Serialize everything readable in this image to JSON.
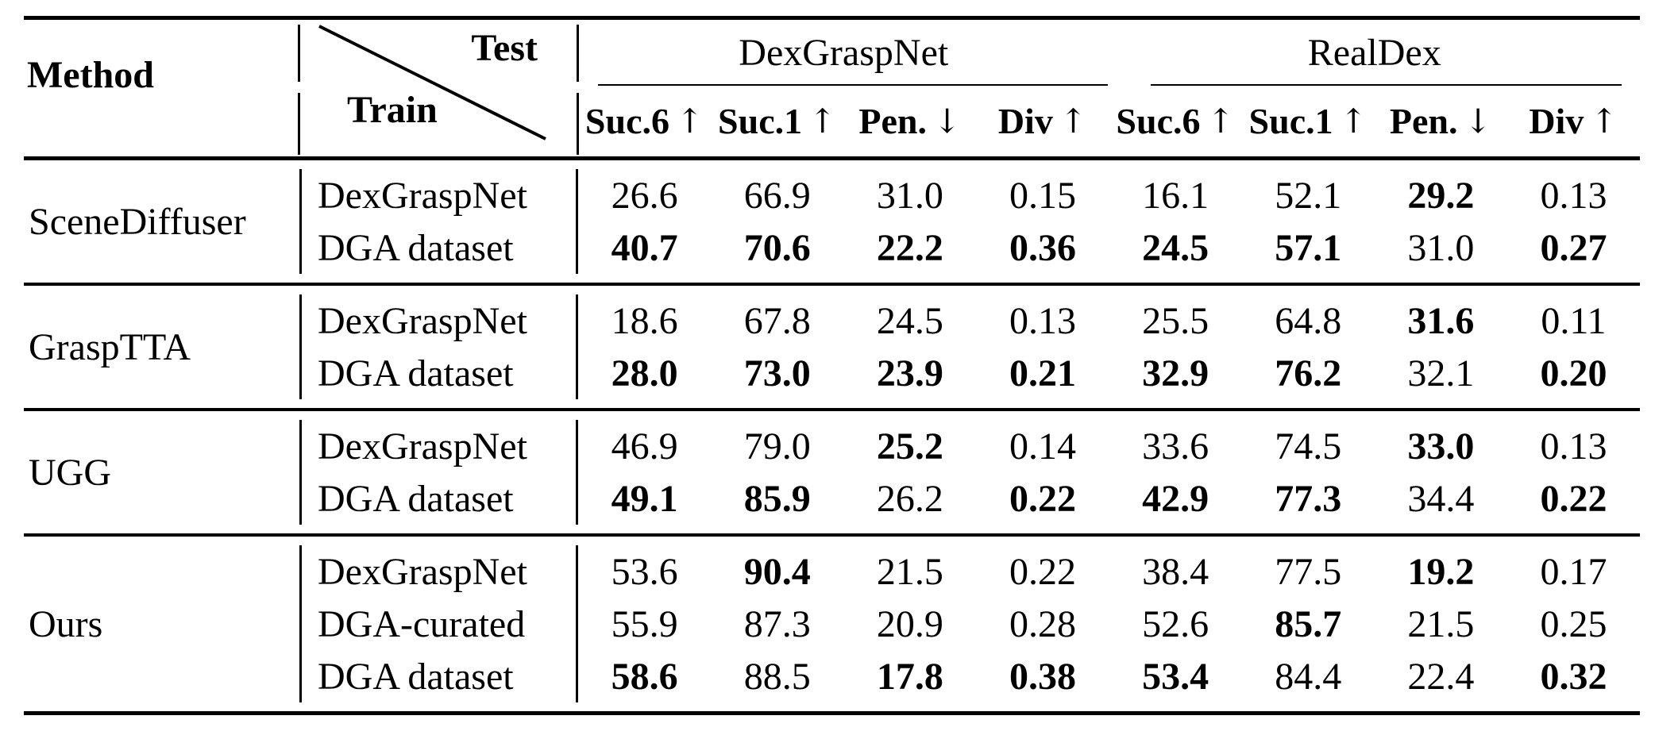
{
  "table": {
    "method_header": "Method",
    "corner": {
      "test_label": "Test",
      "train_label": "Train"
    },
    "groups": [
      {
        "label": "DexGraspNet",
        "metrics": [
          {
            "label": "Suc.6",
            "arrow": "↑"
          },
          {
            "label": "Suc.1",
            "arrow": "↑"
          },
          {
            "label": "Pen.",
            "arrow": "↓"
          },
          {
            "label": "Div",
            "arrow": "↑"
          }
        ]
      },
      {
        "label": "RealDex",
        "metrics": [
          {
            "label": "Suc.6",
            "arrow": "↑"
          },
          {
            "label": "Suc.1",
            "arrow": "↑"
          },
          {
            "label": "Pen.",
            "arrow": "↓"
          },
          {
            "label": "Div",
            "arrow": "↑"
          }
        ]
      }
    ],
    "sections": [
      {
        "method": "SceneDiffuser",
        "rows": [
          {
            "train": "DexGraspNet",
            "values": [
              {
                "text": "26.6",
                "bold": false
              },
              {
                "text": "66.9",
                "bold": false
              },
              {
                "text": "31.0",
                "bold": false
              },
              {
                "text": "0.15",
                "bold": false
              },
              {
                "text": "16.1",
                "bold": false
              },
              {
                "text": "52.1",
                "bold": false
              },
              {
                "text": "29.2",
                "bold": true
              },
              {
                "text": "0.13",
                "bold": false
              }
            ]
          },
          {
            "train": "DGA dataset",
            "values": [
              {
                "text": "40.7",
                "bold": true
              },
              {
                "text": "70.6",
                "bold": true
              },
              {
                "text": "22.2",
                "bold": true
              },
              {
                "text": "0.36",
                "bold": true
              },
              {
                "text": "24.5",
                "bold": true
              },
              {
                "text": "57.1",
                "bold": true
              },
              {
                "text": "31.0",
                "bold": false
              },
              {
                "text": "0.27",
                "bold": true
              }
            ]
          }
        ]
      },
      {
        "method": "GraspTTA",
        "rows": [
          {
            "train": "DexGraspNet",
            "values": [
              {
                "text": "18.6",
                "bold": false
              },
              {
                "text": "67.8",
                "bold": false
              },
              {
                "text": "24.5",
                "bold": false
              },
              {
                "text": "0.13",
                "bold": false
              },
              {
                "text": "25.5",
                "bold": false
              },
              {
                "text": "64.8",
                "bold": false
              },
              {
                "text": "31.6",
                "bold": true
              },
              {
                "text": "0.11",
                "bold": false
              }
            ]
          },
          {
            "train": "DGA dataset",
            "values": [
              {
                "text": "28.0",
                "bold": true
              },
              {
                "text": "73.0",
                "bold": true
              },
              {
                "text": "23.9",
                "bold": true
              },
              {
                "text": "0.21",
                "bold": true
              },
              {
                "text": "32.9",
                "bold": true
              },
              {
                "text": "76.2",
                "bold": true
              },
              {
                "text": "32.1",
                "bold": false
              },
              {
                "text": "0.20",
                "bold": true
              }
            ]
          }
        ]
      },
      {
        "method": "UGG",
        "rows": [
          {
            "train": "DexGraspNet",
            "values": [
              {
                "text": "46.9",
                "bold": false
              },
              {
                "text": "79.0",
                "bold": false
              },
              {
                "text": "25.2",
                "bold": true
              },
              {
                "text": "0.14",
                "bold": false
              },
              {
                "text": "33.6",
                "bold": false
              },
              {
                "text": "74.5",
                "bold": false
              },
              {
                "text": "33.0",
                "bold": true
              },
              {
                "text": "0.13",
                "bold": false
              }
            ]
          },
          {
            "train": "DGA dataset",
            "values": [
              {
                "text": "49.1",
                "bold": true
              },
              {
                "text": "85.9",
                "bold": true
              },
              {
                "text": "26.2",
                "bold": false
              },
              {
                "text": "0.22",
                "bold": true
              },
              {
                "text": "42.9",
                "bold": true
              },
              {
                "text": "77.3",
                "bold": true
              },
              {
                "text": "34.4",
                "bold": false
              },
              {
                "text": "0.22",
                "bold": true
              }
            ]
          }
        ]
      },
      {
        "method": "Ours",
        "rows": [
          {
            "train": "DexGraspNet",
            "values": [
              {
                "text": "53.6",
                "bold": false
              },
              {
                "text": "90.4",
                "bold": true
              },
              {
                "text": "21.5",
                "bold": false
              },
              {
                "text": "0.22",
                "bold": false
              },
              {
                "text": "38.4",
                "bold": false
              },
              {
                "text": "77.5",
                "bold": false
              },
              {
                "text": "19.2",
                "bold": true
              },
              {
                "text": "0.17",
                "bold": false
              }
            ]
          },
          {
            "train": "DGA-curated",
            "values": [
              {
                "text": "55.9",
                "bold": false
              },
              {
                "text": "87.3",
                "bold": false
              },
              {
                "text": "20.9",
                "bold": false
              },
              {
                "text": "0.28",
                "bold": false
              },
              {
                "text": "52.6",
                "bold": false
              },
              {
                "text": "85.7",
                "bold": true
              },
              {
                "text": "21.5",
                "bold": false
              },
              {
                "text": "0.25",
                "bold": false
              }
            ]
          },
          {
            "train": "DGA dataset",
            "values": [
              {
                "text": "58.6",
                "bold": true
              },
              {
                "text": "88.5",
                "bold": false
              },
              {
                "text": "17.8",
                "bold": true
              },
              {
                "text": "0.38",
                "bold": true
              },
              {
                "text": "53.4",
                "bold": true
              },
              {
                "text": "84.4",
                "bold": false
              },
              {
                "text": "22.4",
                "bold": false
              },
              {
                "text": "0.32",
                "bold": true
              }
            ]
          }
        ]
      }
    ]
  }
}
